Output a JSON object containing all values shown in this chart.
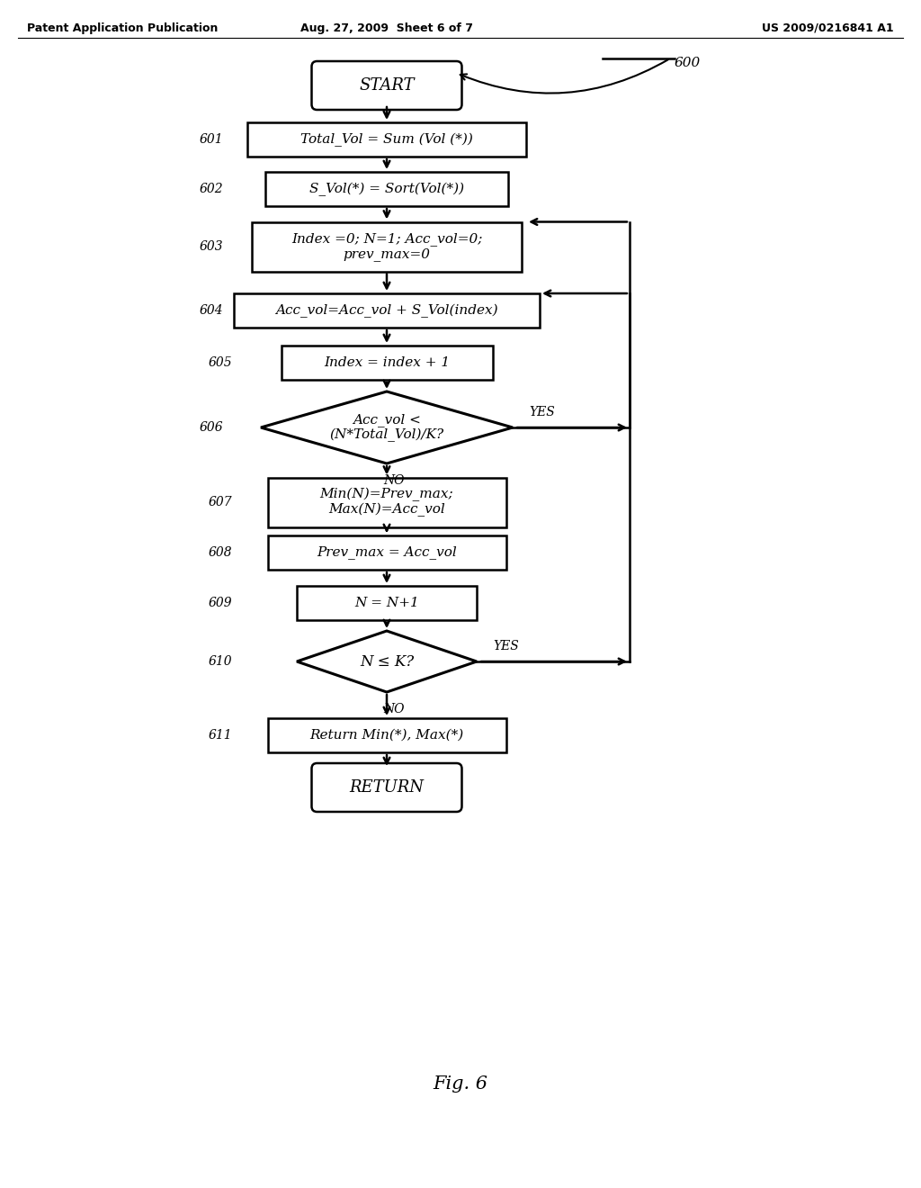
{
  "title_left": "Patent Application Publication",
  "title_mid": "Aug. 27, 2009  Sheet 6 of 7",
  "title_right": "US 2009/0216841 A1",
  "fig_label": "Fig. 6",
  "ref_number": "600",
  "background_color": "#ffffff"
}
